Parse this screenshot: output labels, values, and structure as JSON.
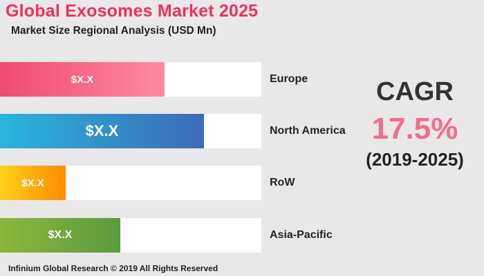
{
  "title": "Global Exosomes Market 2025",
  "subtitle": "Market Size Regional Analysis (USD Mn)",
  "chart_data": {
    "type": "bar",
    "orientation": "horizontal",
    "categories": [
      "Europe",
      "North America",
      "RoW",
      "Asia-Pacific"
    ],
    "values": [
      0.63,
      0.78,
      0.25,
      0.46
    ],
    "value_scale": "relative share of track length",
    "data_labels": [
      "$X.X",
      "$X.X",
      "$X.X",
      "$X.X"
    ],
    "colors": [
      "#f04a70",
      "#3e6bb6",
      "#ff8a00",
      "#5b9a40"
    ],
    "grid": false,
    "legend": "none"
  },
  "cagr": {
    "heading": "CAGR",
    "value": "17.5%",
    "period": "(2019-2025)"
  },
  "footer": "Infinium Global Research © 2019 All Rights Reserved",
  "colors": {
    "title": "#f0305a",
    "cagr_value": "#f66b8c",
    "background": "#e8e8e8"
  }
}
